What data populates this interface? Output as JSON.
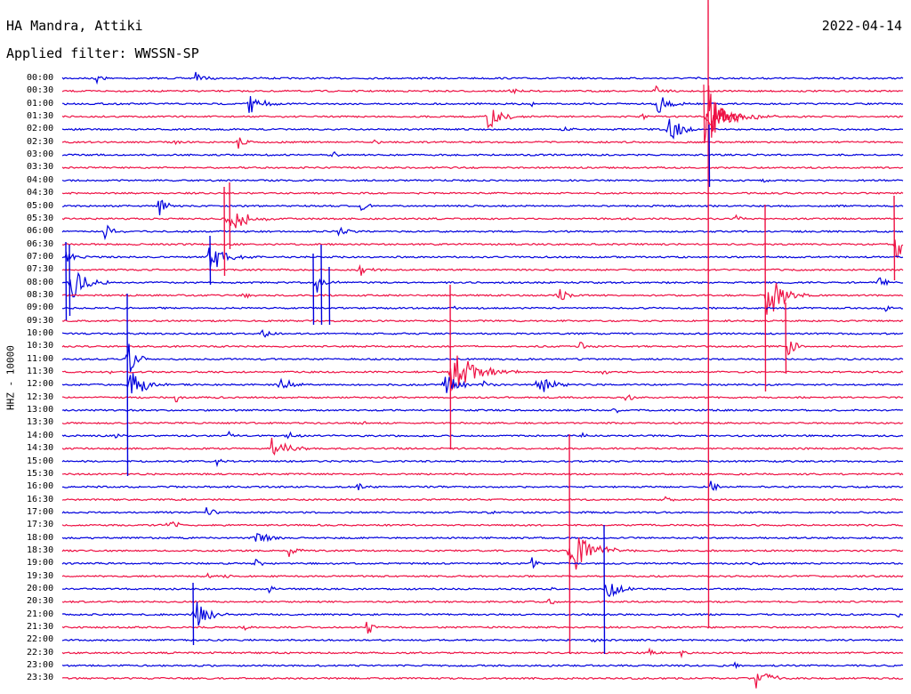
{
  "header": {
    "station": "HA Mandra, Attiki",
    "date": "2022-04-14",
    "filter": "Applied filter: WWSSN-SP"
  },
  "channel_label": "HHZ - 10000",
  "colors": {
    "blue": "#0000dd",
    "red": "#ee1144",
    "text": "#000000"
  },
  "time_labels": [
    "00:00",
    "00:30",
    "01:00",
    "01:30",
    "02:00",
    "02:30",
    "03:00",
    "03:30",
    "04:00",
    "04:30",
    "05:00",
    "05:30",
    "06:00",
    "06:30",
    "07:00",
    "07:30",
    "08:00",
    "08:30",
    "09:00",
    "09:30",
    "10:00",
    "10:30",
    "11:00",
    "11:30",
    "12:00",
    "12:30",
    "13:00",
    "13:30",
    "14:00",
    "14:30",
    "15:00",
    "15:30",
    "16:00",
    "16:30",
    "17:00",
    "17:30",
    "18:00",
    "18:30",
    "19:00",
    "19:30",
    "20:00",
    "20:30",
    "21:00",
    "21:30",
    "22:00",
    "22:30",
    "23:00",
    "23:30"
  ]
}
